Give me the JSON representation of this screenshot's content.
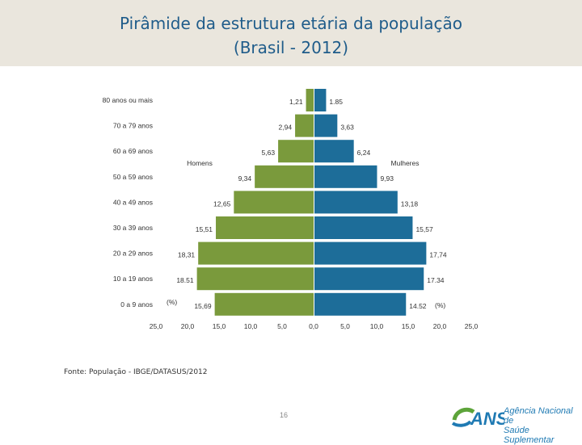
{
  "header": {
    "title_line1": "Pirâmide da estrutura etária da população",
    "title_line2": "(Brasil - 2012)"
  },
  "chart_data": {
    "type": "bar",
    "orientation": "horizontal",
    "title": "Pirâmide da estrutura etária da população (Brasil - 2012)",
    "categories": [
      "80 anos ou mais",
      "70 a 79 anos",
      "60 a 69 anos",
      "50 a 59 anos",
      "40 a 49 anos",
      "30 a 39 anos",
      "20 a 29 anos",
      "10 a 19 anos",
      "0 a 9 anos"
    ],
    "series": [
      {
        "name": "Homens",
        "color": "#7a9a3c",
        "values": [
          1.21,
          2.94,
          5.63,
          9.34,
          12.65,
          15.51,
          18.31,
          18.51,
          15.69
        ],
        "labels": [
          "1,21",
          "2,94",
          "5,63",
          "9,34",
          "12,65",
          "15,51",
          "18,31",
          "18.51",
          "15,69"
        ]
      },
      {
        "name": "Mulheres",
        "color": "#1d6d99",
        "values": [
          1.85,
          3.63,
          6.24,
          9.93,
          13.18,
          15.57,
          17.74,
          17.34,
          14.52
        ],
        "labels": [
          "1.85",
          "3,63",
          "6,24",
          "9,93",
          "13,18",
          "15,57",
          "17,74",
          "17.34",
          "14.52"
        ]
      }
    ],
    "unit_label": "(%)",
    "xlim": [
      -25,
      25
    ],
    "xticks": [
      "25,0",
      "20,0",
      "15,0",
      "10,0",
      "5,0",
      "0,0",
      "5,0",
      "10,0",
      "15,0",
      "20,0",
      "25,0"
    ],
    "legend": [
      "Homens",
      "Mulheres"
    ]
  },
  "footer": {
    "source": "Fonte: População - IBGE/DATASUS/2012",
    "page_number": "16",
    "logo_abbr": "ANS",
    "logo_line1": "Agência Nacional de",
    "logo_line2": "Saúde Suplementar"
  }
}
